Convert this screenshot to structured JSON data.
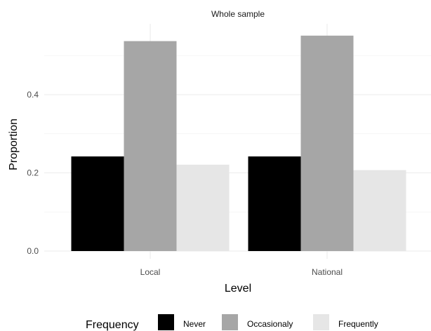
{
  "chart_data": {
    "type": "bar",
    "facet_title": "Whole sample",
    "categories": [
      "Local",
      "National"
    ],
    "series": [
      {
        "name": "Never",
        "values": [
          0.242,
          0.242
        ],
        "color": "#000000"
      },
      {
        "name": "Occasionaly",
        "values": [
          0.537,
          0.551
        ],
        "color": "#a6a6a6"
      },
      {
        "name": "Frequently",
        "values": [
          0.221,
          0.207
        ],
        "color": "#e6e6e6"
      }
    ],
    "xlabel": "Level",
    "ylabel": "Proportion",
    "ylim": [
      0,
      0.58
    ],
    "yticks": [
      0.0,
      0.2,
      0.4
    ],
    "ytick_labels": [
      "0.0",
      "0.2",
      "0.4"
    ],
    "grid": true,
    "legend": {
      "title": "Frequency",
      "placement": "bottom"
    }
  }
}
